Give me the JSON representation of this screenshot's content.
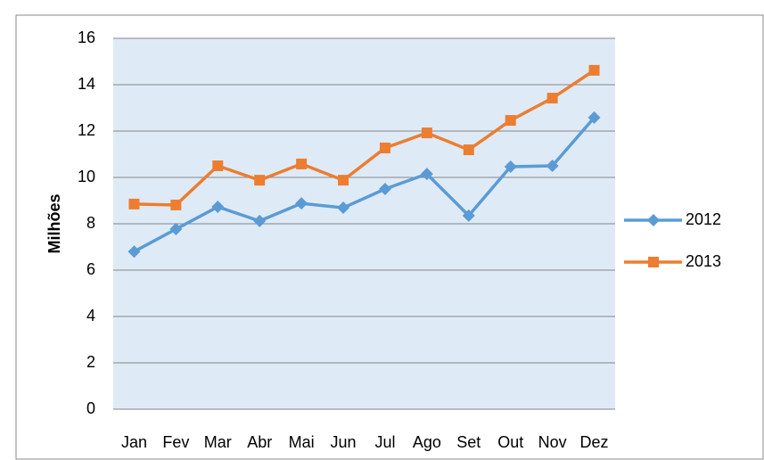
{
  "chart_data": {
    "type": "line",
    "y_label": "Milhões",
    "categories": [
      "Jan",
      "Fev",
      "Mar",
      "Abr",
      "Mai",
      "Jun",
      "Jul",
      "Ago",
      "Set",
      "Out",
      "Nov",
      "Dez"
    ],
    "series": [
      {
        "name": "2012",
        "color": "#5b9bd5",
        "marker": "diamond",
        "values": [
          6.8,
          7.77,
          8.73,
          8.12,
          8.88,
          8.69,
          9.5,
          10.15,
          8.35,
          10.46,
          10.5,
          12.58
        ]
      },
      {
        "name": "2013",
        "color": "#ed7d31",
        "marker": "square",
        "values": [
          8.85,
          8.81,
          10.5,
          9.88,
          10.58,
          9.88,
          11.27,
          11.92,
          11.19,
          12.46,
          13.42,
          14.62
        ]
      }
    ],
    "ylim": [
      0,
      16
    ],
    "yticks": [
      0,
      2,
      4,
      6,
      8,
      10,
      12,
      14,
      16
    ],
    "grid": true,
    "legend": "right"
  }
}
